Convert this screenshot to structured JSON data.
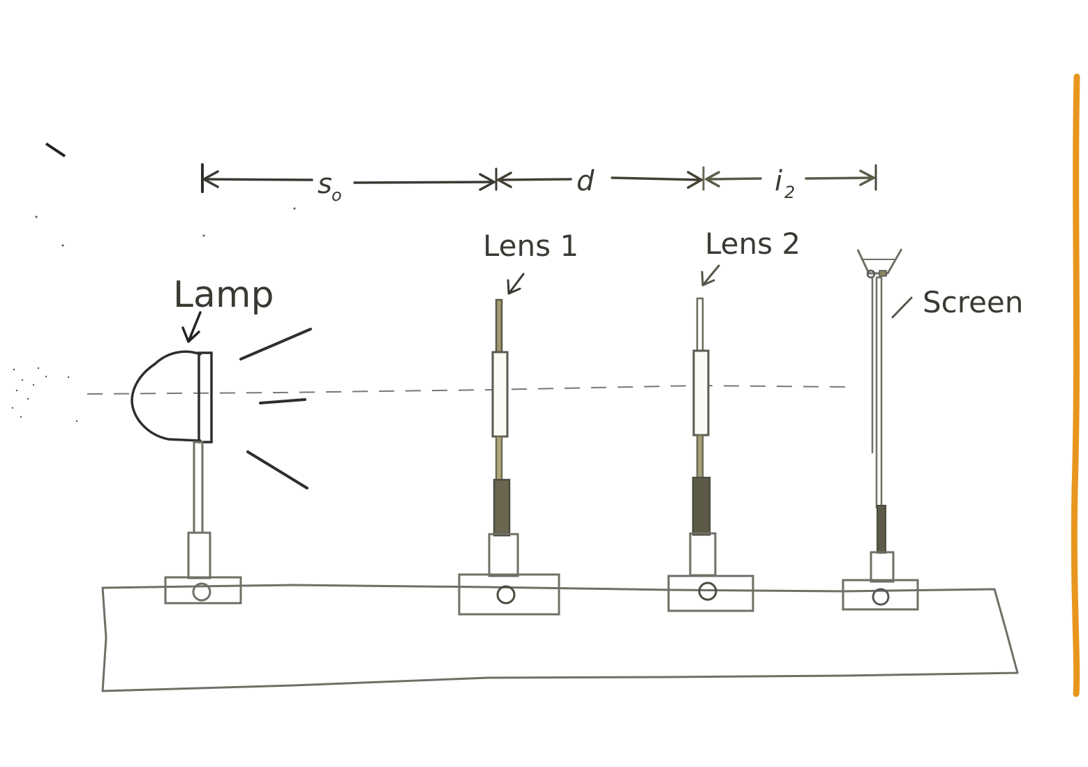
{
  "labels": {
    "lamp": "Lamp",
    "lens1": "Lens 1",
    "lens2": "Lens 2",
    "screen": "Screen"
  },
  "dimensions": {
    "object_distance": {
      "symbol": "s",
      "subscript": "o"
    },
    "lens_separation": {
      "symbol": "d"
    },
    "image_distance": {
      "symbol": "i",
      "subscript": "2"
    }
  },
  "colors": {
    "ink": "#3a3a34",
    "pencil_gray": "#6f6f66",
    "post_dark": "#4a4a40",
    "post_olive": "#8a8660",
    "paper_edge": "#e8961e"
  }
}
